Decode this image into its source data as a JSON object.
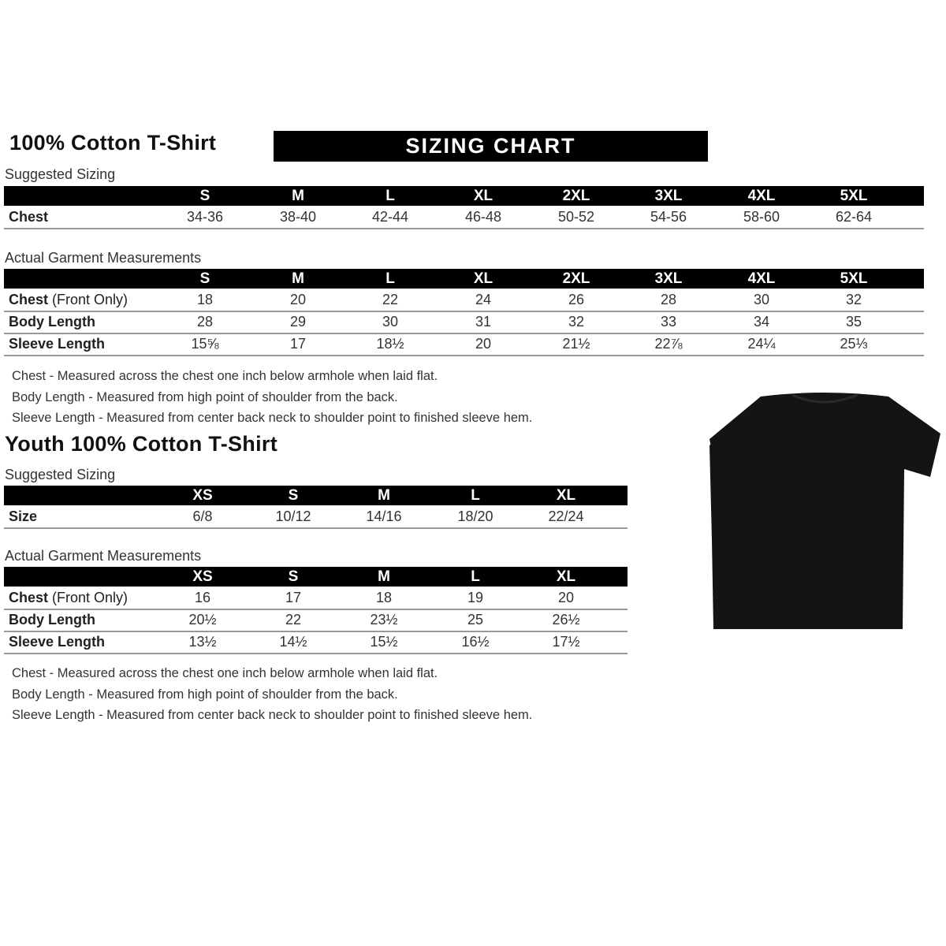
{
  "adult": {
    "title": "100% Cotton T-Shirt",
    "banner": "SIZING CHART",
    "suggested_label": "Suggested Sizing",
    "sizes": [
      "S",
      "M",
      "L",
      "XL",
      "2XL",
      "3XL",
      "4XL",
      "5XL"
    ],
    "suggested_rows": [
      {
        "label": "Chest",
        "values": [
          "34-36",
          "38-40",
          "42-44",
          "46-48",
          "50-52",
          "54-56",
          "58-60",
          "62-64"
        ]
      }
    ],
    "actual_label": "Actual Garment Measurements",
    "actual_rows": [
      {
        "label": "Chest",
        "label_suffix": "(Front Only)",
        "values": [
          "18",
          "20",
          "22",
          "24",
          "26",
          "28",
          "30",
          "32"
        ]
      },
      {
        "label": "Body Length",
        "values": [
          "28",
          "29",
          "30",
          "31",
          "32",
          "33",
          "34",
          "35"
        ]
      },
      {
        "label": "Sleeve Length",
        "values": [
          "15⅝",
          "17",
          "18½",
          "20",
          "21½",
          "22⅞",
          "24¼",
          "25⅓"
        ]
      }
    ],
    "notes": [
      "Chest - Measured across the chest one inch below armhole when laid flat.",
      "Body Length - Measured from high point of shoulder from the back.",
      "Sleeve Length - Measured from center back neck to shoulder point to finished sleeve hem."
    ]
  },
  "youth": {
    "title": "Youth 100% Cotton T-Shirt",
    "suggested_label": "Suggested Sizing",
    "sizes": [
      "XS",
      "S",
      "M",
      "L",
      "XL"
    ],
    "suggested_rows": [
      {
        "label": "Size",
        "values": [
          "6/8",
          "10/12",
          "14/16",
          "18/20",
          "22/24"
        ]
      }
    ],
    "actual_label": "Actual Garment Measurements",
    "actual_rows": [
      {
        "label": "Chest",
        "label_suffix": "(Front Only)",
        "values": [
          "16",
          "17",
          "18",
          "19",
          "20"
        ]
      },
      {
        "label": "Body Length",
        "values": [
          "20½",
          "22",
          "23½",
          "25",
          "26½"
        ]
      },
      {
        "label": "Sleeve Length",
        "values": [
          "13½",
          "14½",
          "15½",
          "16½",
          "17½"
        ]
      }
    ],
    "notes": [
      "Chest - Measured across the chest one inch below armhole when laid flat.",
      "Body Length - Measured from high point of shoulder from the back.",
      "Sleeve Length - Measured from center back neck to shoulder point to finished sleeve hem."
    ]
  },
  "image": {
    "name": "black-tshirt",
    "color": "#141414"
  }
}
